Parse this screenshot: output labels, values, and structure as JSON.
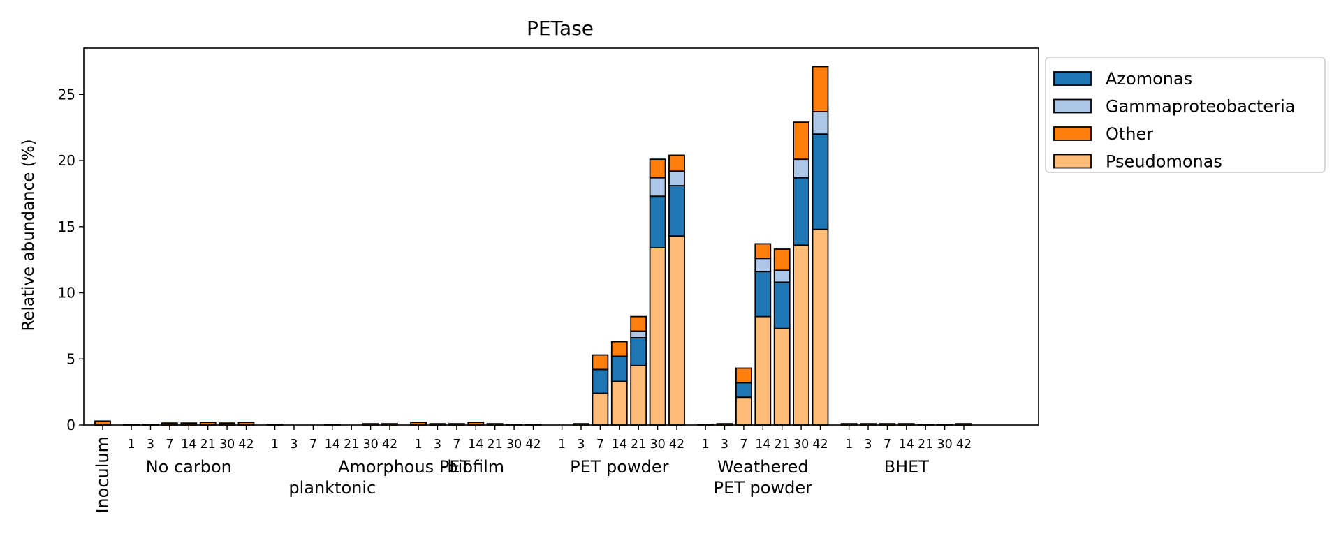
{
  "chart_data": {
    "type": "bar",
    "stacked": true,
    "title": "PETase",
    "xlabel": "",
    "ylabel": "Relative abundance (%)",
    "ylim": [
      0,
      28.5
    ],
    "yticks": [
      0,
      5,
      10,
      15,
      20,
      25
    ],
    "grid": false,
    "legend_position": "outside-top-right",
    "stack_order": [
      "Pseudomonas",
      "Azomonas",
      "Gammaproteobacteria",
      "Other"
    ],
    "legend": [
      "Azomonas",
      "Gammaproteobacteria",
      "Other",
      "Pseudomonas"
    ],
    "series_colors": {
      "Pseudomonas": "#ffbb78",
      "Azomonas": "#1f77b4",
      "Gammaproteobacteria": "#aec7e8",
      "Other": "#ff7f0e"
    },
    "days": [
      "1",
      "3",
      "7",
      "14",
      "21",
      "30",
      "42"
    ],
    "groups": [
      {
        "label": [
          "Inoculum"
        ],
        "rotated": true,
        "show_days": false,
        "bars": [
          {
            "Pseudomonas": 0.0,
            "Azomonas": 0.0,
            "Gammaproteobacteria": 0.0,
            "Other": 0.3
          }
        ]
      },
      {
        "label": [
          "No carbon"
        ],
        "show_days": true,
        "bars": [
          {
            "Pseudomonas": 0.0,
            "Azomonas": 0.0,
            "Gammaproteobacteria": 0.0,
            "Other": 0.05
          },
          {
            "Pseudomonas": 0.0,
            "Azomonas": 0.0,
            "Gammaproteobacteria": 0.0,
            "Other": 0.05
          },
          {
            "Pseudomonas": 0.0,
            "Azomonas": 0.0,
            "Gammaproteobacteria": 0.0,
            "Other": 0.15
          },
          {
            "Pseudomonas": 0.0,
            "Azomonas": 0.0,
            "Gammaproteobacteria": 0.0,
            "Other": 0.15
          },
          {
            "Pseudomonas": 0.0,
            "Azomonas": 0.0,
            "Gammaproteobacteria": 0.0,
            "Other": 0.2
          },
          {
            "Pseudomonas": 0.0,
            "Azomonas": 0.0,
            "Gammaproteobacteria": 0.0,
            "Other": 0.15
          },
          {
            "Pseudomonas": 0.0,
            "Azomonas": 0.0,
            "Gammaproteobacteria": 0.0,
            "Other": 0.2
          }
        ]
      },
      {
        "label": [
          "planktonic"
        ],
        "super_label": "Amorphous PET",
        "show_days": true,
        "bars": [
          {
            "Pseudomonas": 0.0,
            "Azomonas": 0.0,
            "Gammaproteobacteria": 0.0,
            "Other": 0.05
          },
          {
            "Pseudomonas": 0.0,
            "Azomonas": 0.0,
            "Gammaproteobacteria": 0.0,
            "Other": 0.0
          },
          {
            "Pseudomonas": 0.0,
            "Azomonas": 0.0,
            "Gammaproteobacteria": 0.0,
            "Other": 0.0
          },
          {
            "Pseudomonas": 0.0,
            "Azomonas": 0.0,
            "Gammaproteobacteria": 0.0,
            "Other": 0.05
          },
          {
            "Pseudomonas": 0.0,
            "Azomonas": 0.0,
            "Gammaproteobacteria": 0.0,
            "Other": 0.0
          },
          {
            "Pseudomonas": 0.0,
            "Azomonas": 0.0,
            "Gammaproteobacteria": 0.0,
            "Other": 0.1
          },
          {
            "Pseudomonas": 0.0,
            "Azomonas": 0.0,
            "Gammaproteobacteria": 0.0,
            "Other": 0.1
          }
        ]
      },
      {
        "label": [
          "biofilm"
        ],
        "show_days": true,
        "bars": [
          {
            "Pseudomonas": 0.0,
            "Azomonas": 0.0,
            "Gammaproteobacteria": 0.0,
            "Other": 0.2
          },
          {
            "Pseudomonas": 0.0,
            "Azomonas": 0.0,
            "Gammaproteobacteria": 0.0,
            "Other": 0.1
          },
          {
            "Pseudomonas": 0.0,
            "Azomonas": 0.0,
            "Gammaproteobacteria": 0.0,
            "Other": 0.1
          },
          {
            "Pseudomonas": 0.0,
            "Azomonas": 0.0,
            "Gammaproteobacteria": 0.0,
            "Other": 0.2
          },
          {
            "Pseudomonas": 0.0,
            "Azomonas": 0.0,
            "Gammaproteobacteria": 0.0,
            "Other": 0.1
          },
          {
            "Pseudomonas": 0.0,
            "Azomonas": 0.0,
            "Gammaproteobacteria": 0.0,
            "Other": 0.05
          },
          {
            "Pseudomonas": 0.0,
            "Azomonas": 0.0,
            "Gammaproteobacteria": 0.0,
            "Other": 0.05
          }
        ]
      },
      {
        "label": [
          "PET powder"
        ],
        "show_days": true,
        "bars": [
          {
            "Pseudomonas": 0.0,
            "Azomonas": 0.0,
            "Gammaproteobacteria": 0.0,
            "Other": 0.0
          },
          {
            "Pseudomonas": 0.0,
            "Azomonas": 0.0,
            "Gammaproteobacteria": 0.0,
            "Other": 0.1
          },
          {
            "Pseudomonas": 2.4,
            "Azomonas": 1.8,
            "Gammaproteobacteria": 0.0,
            "Other": 1.1
          },
          {
            "Pseudomonas": 3.3,
            "Azomonas": 1.9,
            "Gammaproteobacteria": 0.0,
            "Other": 1.1
          },
          {
            "Pseudomonas": 4.5,
            "Azomonas": 2.1,
            "Gammaproteobacteria": 0.5,
            "Other": 1.1
          },
          {
            "Pseudomonas": 13.4,
            "Azomonas": 3.9,
            "Gammaproteobacteria": 1.4,
            "Other": 1.4
          },
          {
            "Pseudomonas": 14.3,
            "Azomonas": 3.8,
            "Gammaproteobacteria": 1.1,
            "Other": 1.2
          }
        ]
      },
      {
        "label": [
          "Weathered",
          "PET powder"
        ],
        "show_days": true,
        "bars": [
          {
            "Pseudomonas": 0.0,
            "Azomonas": 0.0,
            "Gammaproteobacteria": 0.0,
            "Other": 0.05
          },
          {
            "Pseudomonas": 0.0,
            "Azomonas": 0.0,
            "Gammaproteobacteria": 0.0,
            "Other": 0.1
          },
          {
            "Pseudomonas": 2.1,
            "Azomonas": 1.1,
            "Gammaproteobacteria": 0.0,
            "Other": 1.1
          },
          {
            "Pseudomonas": 8.2,
            "Azomonas": 3.4,
            "Gammaproteobacteria": 1.0,
            "Other": 1.1
          },
          {
            "Pseudomonas": 7.3,
            "Azomonas": 3.5,
            "Gammaproteobacteria": 0.9,
            "Other": 1.6
          },
          {
            "Pseudomonas": 13.6,
            "Azomonas": 5.1,
            "Gammaproteobacteria": 1.4,
            "Other": 2.8
          },
          {
            "Pseudomonas": 14.8,
            "Azomonas": 7.2,
            "Gammaproteobacteria": 1.7,
            "Other": 3.4
          }
        ]
      },
      {
        "label": [
          "BHET"
        ],
        "show_days": true,
        "bars": [
          {
            "Pseudomonas": 0.0,
            "Azomonas": 0.0,
            "Gammaproteobacteria": 0.0,
            "Other": 0.1
          },
          {
            "Pseudomonas": 0.0,
            "Azomonas": 0.0,
            "Gammaproteobacteria": 0.0,
            "Other": 0.1
          },
          {
            "Pseudomonas": 0.0,
            "Azomonas": 0.0,
            "Gammaproteobacteria": 0.0,
            "Other": 0.1
          },
          {
            "Pseudomonas": 0.0,
            "Azomonas": 0.0,
            "Gammaproteobacteria": 0.0,
            "Other": 0.1
          },
          {
            "Pseudomonas": 0.0,
            "Azomonas": 0.0,
            "Gammaproteobacteria": 0.0,
            "Other": 0.05
          },
          {
            "Pseudomonas": 0.0,
            "Azomonas": 0.0,
            "Gammaproteobacteria": 0.0,
            "Other": 0.05
          },
          {
            "Pseudomonas": 0.0,
            "Azomonas": 0.0,
            "Gammaproteobacteria": 0.0,
            "Other": 0.1
          }
        ]
      }
    ]
  }
}
